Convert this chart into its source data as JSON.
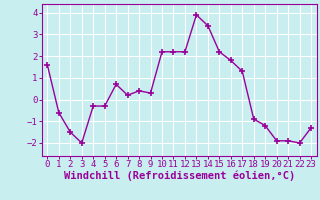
{
  "x": [
    0,
    1,
    2,
    3,
    4,
    5,
    6,
    7,
    8,
    9,
    10,
    11,
    12,
    13,
    14,
    15,
    16,
    17,
    18,
    19,
    20,
    21,
    22,
    23
  ],
  "y": [
    1.6,
    -0.6,
    -1.5,
    -2.0,
    -0.3,
    -0.3,
    0.7,
    0.2,
    0.4,
    0.3,
    2.2,
    2.2,
    2.2,
    3.9,
    3.4,
    2.2,
    1.8,
    1.3,
    -0.9,
    -1.2,
    -1.9,
    -1.9,
    -2.0,
    -1.3
  ],
  "line_color": "#990099",
  "marker": "+",
  "marker_size": 4,
  "bg_color": "#c8eef0",
  "grid_color": "#ffffff",
  "xlabel": "Windchill (Refroidissement éolien,°C)",
  "ylabel": "",
  "ylim": [
    -2.6,
    4.4
  ],
  "xlim": [
    -0.5,
    23.5
  ],
  "yticks": [
    -2,
    -1,
    0,
    1,
    2,
    3,
    4
  ],
  "xticks": [
    0,
    1,
    2,
    3,
    4,
    5,
    6,
    7,
    8,
    9,
    10,
    11,
    12,
    13,
    14,
    15,
    16,
    17,
    18,
    19,
    20,
    21,
    22,
    23
  ],
  "tick_label_fontsize": 6.5,
  "xlabel_fontsize": 7.5,
  "axis_color": "#990099",
  "spine_color": "#990099",
  "title": ""
}
